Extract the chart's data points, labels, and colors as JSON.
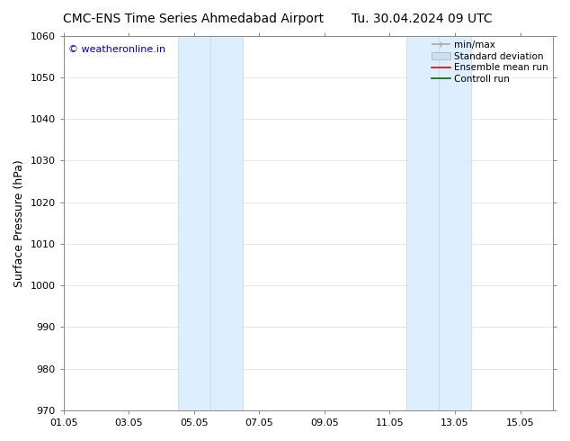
{
  "title_left": "CMC-ENS Time Series Ahmedabad Airport",
  "title_right": "Tu. 30.04.2024 09 UTC",
  "ylabel": "Surface Pressure (hPa)",
  "ylim": [
    970,
    1060
  ],
  "yticks": [
    970,
    980,
    990,
    1000,
    1010,
    1020,
    1030,
    1040,
    1050,
    1060
  ],
  "xlim": [
    0,
    15
  ],
  "xtick_labels": [
    "01.05",
    "03.05",
    "05.05",
    "07.05",
    "09.05",
    "11.05",
    "13.05",
    "15.05"
  ],
  "xtick_positions": [
    0,
    2,
    4,
    6,
    8,
    10,
    12,
    14
  ],
  "shaded_regions": [
    {
      "x_start": 3.5,
      "x_end": 4.5,
      "color": "#ddeeff",
      "border": "#c0d8f0"
    },
    {
      "x_start": 4.5,
      "x_end": 5.5,
      "color": "#ddeeff",
      "border": "#c0d8f0"
    },
    {
      "x_start": 10.5,
      "x_end": 11.5,
      "color": "#ddeeff",
      "border": "#c0d8f0"
    },
    {
      "x_start": 11.5,
      "x_end": 12.5,
      "color": "#ddeeff",
      "border": "#c0d8f0"
    }
  ],
  "watermark_text": "© weatheronline.in",
  "watermark_color": "#0000cc",
  "legend_entries": [
    {
      "label": "min/max",
      "color": "#aaaaaa",
      "lw": 1.2
    },
    {
      "label": "Standard deviation",
      "color": "#cce0f0",
      "lw": 6
    },
    {
      "label": "Ensemble mean run",
      "color": "#dd0000",
      "lw": 1.2
    },
    {
      "label": "Controll run",
      "color": "#006600",
      "lw": 1.2
    }
  ],
  "bg_color": "#ffffff",
  "plot_bg_color": "#ffffff",
  "grid_color": "#dddddd",
  "spine_color": "#888888",
  "title_fontsize": 10,
  "ylabel_fontsize": 9,
  "tick_fontsize": 8,
  "legend_fontsize": 7.5,
  "watermark_fontsize": 8
}
